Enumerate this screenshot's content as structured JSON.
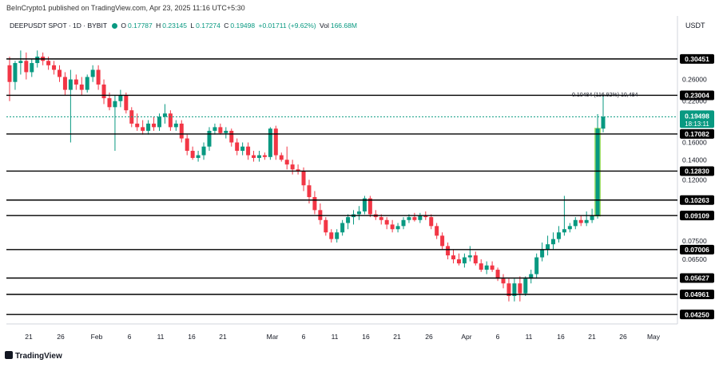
{
  "header": {
    "caption": "BeInCrypto1 published on TradingView.com, Apr 23, 2025 11:16 UTC+5:30",
    "symbol": "DEEPUSDT SPOT · 1D · BYBIT",
    "open_label": "O",
    "open": "0.17787",
    "high_label": "H",
    "high": "0.23145",
    "low_label": "L",
    "low": "0.17274",
    "close_label": "C",
    "close": "0.19498",
    "change": "+0.01711 (+9.62%)",
    "vol_label": "Vol",
    "vol": "166.68M",
    "currency": "USDT"
  },
  "footer": {
    "brand": "TradingView"
  },
  "colors": {
    "up": "#089981",
    "down": "#f23645",
    "line": "#000000",
    "pill": "#000000",
    "last": "#089981",
    "grid": "#e0e3eb",
    "highlight": "#a5e06c"
  },
  "chart_data": {
    "type": "candlestick",
    "title": "DEEPUSDT SPOT · 1D · BYBIT",
    "ylabel": "USDT",
    "yscale": "log",
    "ylim": [
      0.0405,
      0.375
    ],
    "x_ticks": [
      "21",
      "26",
      "Feb",
      "6",
      "11",
      "16",
      "21",
      "Mar",
      "6",
      "11",
      "16",
      "21",
      "26",
      "Apr",
      "6",
      "11",
      "16",
      "21",
      "26",
      "May"
    ],
    "y_ticks": [
      "0.26000",
      "0.22000",
      "0.16000",
      "0.14000",
      "0.12000",
      "0.07500",
      "0.06500"
    ],
    "levels": [
      "0.30451",
      "0.23004",
      "0.17082",
      "0.12830",
      "0.10263",
      "0.09109",
      "0.07006",
      "0.05627",
      "0.04961",
      "0.04250"
    ],
    "last_price": "0.19498",
    "countdown": "18:13:11",
    "annotation": "0.10484 (116.92%) 10,484",
    "candles": [
      [
        0.29,
        0.31,
        0.22,
        0.255
      ],
      [
        0.255,
        0.3,
        0.24,
        0.295
      ],
      [
        0.295,
        0.325,
        0.27,
        0.3
      ],
      [
        0.3,
        0.32,
        0.26,
        0.275
      ],
      [
        0.275,
        0.305,
        0.265,
        0.295
      ],
      [
        0.295,
        0.325,
        0.285,
        0.31
      ],
      [
        0.31,
        0.32,
        0.29,
        0.3
      ],
      [
        0.3,
        0.31,
        0.28,
        0.29
      ],
      [
        0.29,
        0.3,
        0.27,
        0.28
      ],
      [
        0.28,
        0.29,
        0.255,
        0.265
      ],
      [
        0.265,
        0.275,
        0.23,
        0.24
      ],
      [
        0.24,
        0.28,
        0.16,
        0.26
      ],
      [
        0.26,
        0.27,
        0.24,
        0.25
      ],
      [
        0.25,
        0.265,
        0.23,
        0.24
      ],
      [
        0.24,
        0.27,
        0.235,
        0.265
      ],
      [
        0.265,
        0.29,
        0.255,
        0.28
      ],
      [
        0.28,
        0.29,
        0.24,
        0.25
      ],
      [
        0.25,
        0.26,
        0.215,
        0.225
      ],
      [
        0.225,
        0.235,
        0.205,
        0.21
      ],
      [
        0.21,
        0.23,
        0.15,
        0.22
      ],
      [
        0.22,
        0.24,
        0.21,
        0.23
      ],
      [
        0.23,
        0.235,
        0.2,
        0.205
      ],
      [
        0.205,
        0.21,
        0.18,
        0.185
      ],
      [
        0.185,
        0.2,
        0.175,
        0.18
      ],
      [
        0.18,
        0.19,
        0.17,
        0.175
      ],
      [
        0.175,
        0.19,
        0.17,
        0.185
      ],
      [
        0.185,
        0.195,
        0.175,
        0.18
      ],
      [
        0.18,
        0.2,
        0.175,
        0.195
      ],
      [
        0.195,
        0.215,
        0.185,
        0.2
      ],
      [
        0.2,
        0.205,
        0.175,
        0.18
      ],
      [
        0.18,
        0.19,
        0.175,
        0.185
      ],
      [
        0.185,
        0.19,
        0.16,
        0.165
      ],
      [
        0.165,
        0.17,
        0.145,
        0.15
      ],
      [
        0.15,
        0.155,
        0.14,
        0.142
      ],
      [
        0.142,
        0.15,
        0.138,
        0.145
      ],
      [
        0.145,
        0.16,
        0.14,
        0.155
      ],
      [
        0.155,
        0.18,
        0.15,
        0.175
      ],
      [
        0.175,
        0.185,
        0.17,
        0.18
      ],
      [
        0.18,
        0.185,
        0.17,
        0.172
      ],
      [
        0.172,
        0.18,
        0.165,
        0.175
      ],
      [
        0.175,
        0.178,
        0.155,
        0.16
      ],
      [
        0.16,
        0.165,
        0.145,
        0.15
      ],
      [
        0.15,
        0.16,
        0.145,
        0.155
      ],
      [
        0.155,
        0.16,
        0.14,
        0.145
      ],
      [
        0.145,
        0.15,
        0.138,
        0.142
      ],
      [
        0.142,
        0.15,
        0.138,
        0.145
      ],
      [
        0.145,
        0.148,
        0.14,
        0.143
      ],
      [
        0.143,
        0.18,
        0.14,
        0.178
      ],
      [
        0.178,
        0.182,
        0.14,
        0.145
      ],
      [
        0.145,
        0.148,
        0.138,
        0.14
      ],
      [
        0.14,
        0.155,
        0.13,
        0.135
      ],
      [
        0.135,
        0.14,
        0.125,
        0.13
      ],
      [
        0.13,
        0.135,
        0.125,
        0.128
      ],
      [
        0.128,
        0.132,
        0.11,
        0.115
      ],
      [
        0.115,
        0.12,
        0.1,
        0.105
      ],
      [
        0.105,
        0.11,
        0.092,
        0.095
      ],
      [
        0.095,
        0.1,
        0.085,
        0.088
      ],
      [
        0.088,
        0.09,
        0.078,
        0.08
      ],
      [
        0.08,
        0.082,
        0.074,
        0.076
      ],
      [
        0.076,
        0.082,
        0.074,
        0.08
      ],
      [
        0.08,
        0.088,
        0.078,
        0.086
      ],
      [
        0.086,
        0.092,
        0.082,
        0.09
      ],
      [
        0.09,
        0.095,
        0.085,
        0.092
      ],
      [
        0.092,
        0.098,
        0.088,
        0.094
      ],
      [
        0.094,
        0.106,
        0.092,
        0.104
      ],
      [
        0.104,
        0.106,
        0.09,
        0.092
      ],
      [
        0.092,
        0.095,
        0.088,
        0.09
      ],
      [
        0.09,
        0.092,
        0.085,
        0.088
      ],
      [
        0.088,
        0.09,
        0.082,
        0.085
      ],
      [
        0.085,
        0.088,
        0.08,
        0.082
      ],
      [
        0.082,
        0.086,
        0.08,
        0.084
      ],
      [
        0.084,
        0.09,
        0.082,
        0.088
      ],
      [
        0.088,
        0.092,
        0.086,
        0.09
      ],
      [
        0.09,
        0.093,
        0.087,
        0.088
      ],
      [
        0.088,
        0.093,
        0.086,
        0.091
      ],
      [
        0.091,
        0.094,
        0.088,
        0.09
      ],
      [
        0.09,
        0.092,
        0.082,
        0.084
      ],
      [
        0.084,
        0.086,
        0.076,
        0.078
      ],
      [
        0.078,
        0.08,
        0.07,
        0.072
      ],
      [
        0.072,
        0.074,
        0.065,
        0.067
      ],
      [
        0.067,
        0.07,
        0.063,
        0.065
      ],
      [
        0.065,
        0.068,
        0.062,
        0.063
      ],
      [
        0.063,
        0.068,
        0.061,
        0.066
      ],
      [
        0.066,
        0.072,
        0.064,
        0.067
      ],
      [
        0.067,
        0.069,
        0.062,
        0.063
      ],
      [
        0.063,
        0.065,
        0.059,
        0.06
      ],
      [
        0.06,
        0.064,
        0.058,
        0.062
      ],
      [
        0.062,
        0.064,
        0.059,
        0.06
      ],
      [
        0.06,
        0.061,
        0.055,
        0.056
      ],
      [
        0.056,
        0.058,
        0.052,
        0.054
      ],
      [
        0.054,
        0.056,
        0.047,
        0.049
      ],
      [
        0.049,
        0.056,
        0.047,
        0.054
      ],
      [
        0.054,
        0.057,
        0.047,
        0.05
      ],
      [
        0.05,
        0.057,
        0.049,
        0.056
      ],
      [
        0.056,
        0.06,
        0.054,
        0.058
      ],
      [
        0.058,
        0.068,
        0.056,
        0.066
      ],
      [
        0.066,
        0.074,
        0.064,
        0.07
      ],
      [
        0.07,
        0.078,
        0.067,
        0.073
      ],
      [
        0.073,
        0.08,
        0.07,
        0.076
      ],
      [
        0.076,
        0.084,
        0.074,
        0.08
      ],
      [
        0.08,
        0.106,
        0.078,
        0.082
      ],
      [
        0.082,
        0.086,
        0.08,
        0.084
      ],
      [
        0.084,
        0.09,
        0.082,
        0.088
      ],
      [
        0.088,
        0.091,
        0.084,
        0.086
      ],
      [
        0.086,
        0.094,
        0.084,
        0.088
      ],
      [
        0.088,
        0.096,
        0.086,
        0.091
      ],
      [
        0.091,
        0.199,
        0.089,
        0.178
      ],
      [
        0.178,
        0.231,
        0.173,
        0.195
      ]
    ]
  }
}
